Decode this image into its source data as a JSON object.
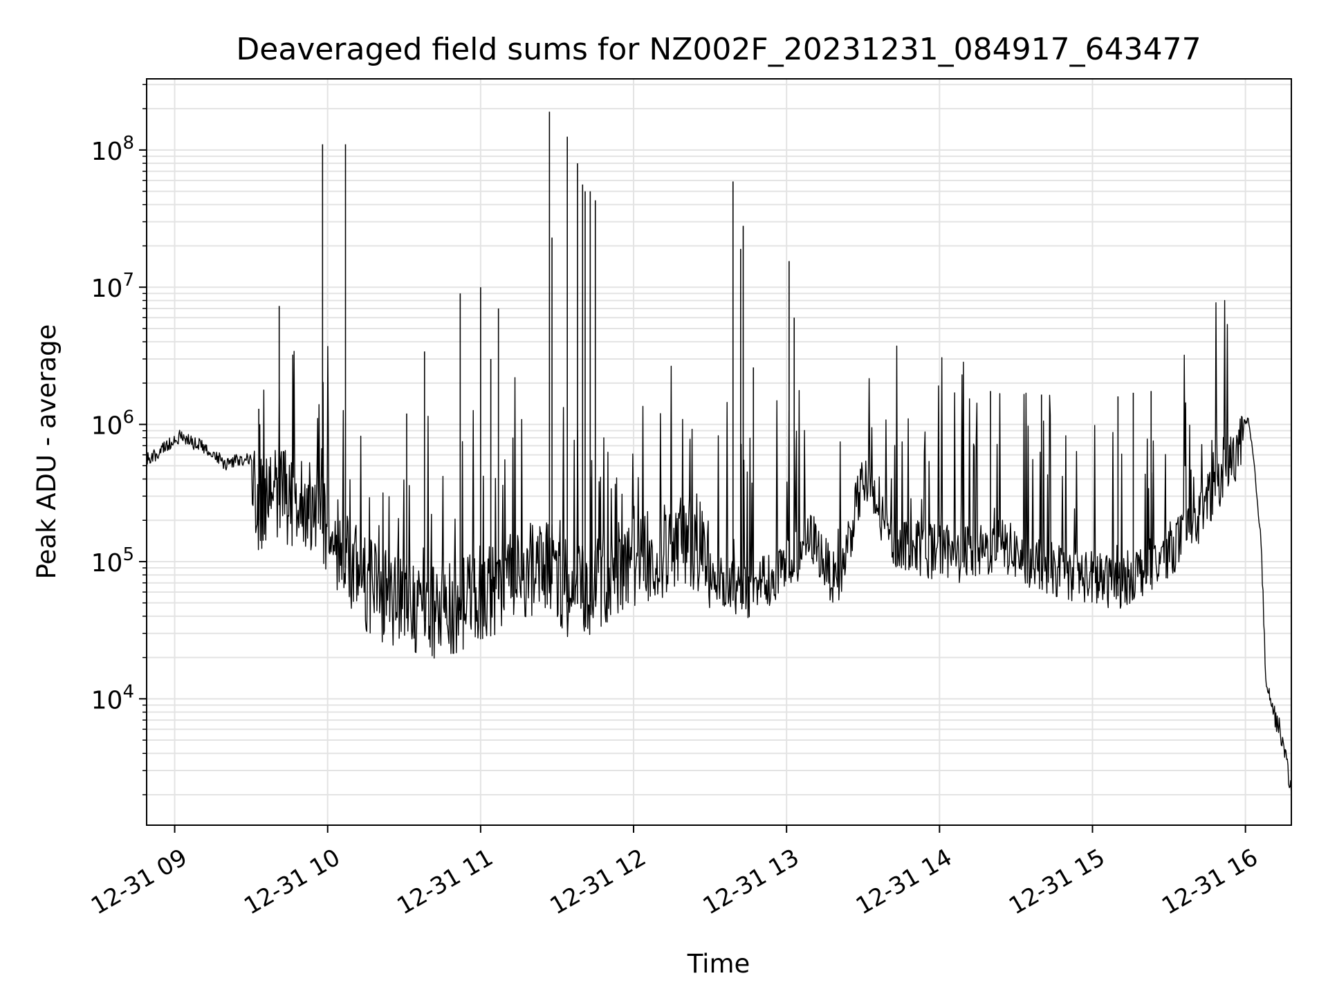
{
  "chart_data": {
    "type": "line",
    "title": "Deaveraged field sums for NZ002F_20231231_084917_643477",
    "xlabel": "Time",
    "ylabel": "Peak ADU - average",
    "yscale": "log",
    "grid": true,
    "legend": "none",
    "line_color": "#000000",
    "xlim": [
      "12-31 08:49",
      "12-31 16:18"
    ],
    "ylim": [
      1200,
      330000000
    ],
    "x_ticks": [
      {
        "t": "12-31 09:00",
        "label": "12-31 09"
      },
      {
        "t": "12-31 10:00",
        "label": "12-31 10"
      },
      {
        "t": "12-31 11:00",
        "label": "12-31 11"
      },
      {
        "t": "12-31 12:00",
        "label": "12-31 12"
      },
      {
        "t": "12-31 13:00",
        "label": "12-31 13"
      },
      {
        "t": "12-31 14:00",
        "label": "12-31 14"
      },
      {
        "t": "12-31 15:00",
        "label": "12-31 15"
      },
      {
        "t": "12-31 16:00",
        "label": "12-31 16"
      }
    ],
    "y_ticks": [
      {
        "value": 10000,
        "base": "10",
        "exp": "4"
      },
      {
        "value": 100000,
        "base": "10",
        "exp": "5"
      },
      {
        "value": 1000000,
        "base": "10",
        "exp": "6"
      },
      {
        "value": 10000000,
        "base": "10",
        "exp": "7"
      },
      {
        "value": 100000000,
        "base": "10",
        "exp": "8"
      }
    ],
    "series": [
      {
        "baseline": [
          [
            "12-31 08:49",
            550000
          ],
          [
            "12-31 08:55",
            650000
          ],
          [
            "12-31 09:02",
            820000
          ],
          [
            "12-31 09:10",
            700000
          ],
          [
            "12-31 09:20",
            520000
          ],
          [
            "12-31 09:30",
            580000
          ],
          [
            "12-31 09:33",
            250000
          ],
          [
            "12-31 09:40",
            330000
          ],
          [
            "12-31 09:50",
            260000
          ],
          [
            "12-31 09:58",
            200000
          ],
          [
            "12-31 10:06",
            120000
          ],
          [
            "12-31 10:15",
            70000
          ],
          [
            "12-31 10:25",
            50000
          ],
          [
            "12-31 10:35",
            47000
          ],
          [
            "12-31 10:45",
            43000
          ],
          [
            "12-31 10:52",
            47000
          ],
          [
            "12-31 11:00",
            60000
          ],
          [
            "12-31 11:10",
            70000
          ],
          [
            "12-31 11:25",
            100000
          ],
          [
            "12-31 11:35",
            60000
          ],
          [
            "12-31 11:45",
            65000
          ],
          [
            "12-31 11:55",
            95000
          ],
          [
            "12-31 12:10",
            120000
          ],
          [
            "12-31 12:25",
            140000
          ],
          [
            "12-31 12:33",
            70000
          ],
          [
            "12-31 12:45",
            60000
          ],
          [
            "12-31 13:00",
            90000
          ],
          [
            "12-31 13:10",
            150000
          ],
          [
            "12-31 13:20",
            65000
          ],
          [
            "12-31 13:30",
            400000
          ],
          [
            "12-31 13:40",
            150000
          ],
          [
            "12-31 13:55",
            120000
          ],
          [
            "12-31 14:10",
            110000
          ],
          [
            "12-31 14:25",
            130000
          ],
          [
            "12-31 14:40",
            90000
          ],
          [
            "12-31 14:55",
            80000
          ],
          [
            "12-31 15:10",
            70000
          ],
          [
            "12-31 15:25",
            100000
          ],
          [
            "12-31 15:40",
            180000
          ],
          [
            "12-31 15:50",
            400000
          ],
          [
            "12-31 15:58",
            700000
          ],
          [
            "12-31 16:01",
            1100000
          ],
          [
            "12-31 16:03",
            600000
          ],
          [
            "12-31 16:06",
            150000
          ],
          [
            "12-31 16:08",
            15000
          ],
          [
            "12-31 16:11",
            8000
          ],
          [
            "12-31 16:14",
            5500
          ],
          [
            "12-31 16:18",
            2200
          ]
        ],
        "spikes": [
          [
            "12-31 09:33",
            1300000
          ],
          [
            "12-31 09:41",
            7300000
          ],
          [
            "12-31 09:58",
            110000000
          ],
          [
            "12-31 10:07",
            110000000
          ],
          [
            "12-31 10:31",
            1200000
          ],
          [
            "12-31 10:38",
            3400000
          ],
          [
            "12-31 10:52",
            9000000
          ],
          [
            "12-31 11:00",
            10000000
          ],
          [
            "12-31 11:04",
            3000000
          ],
          [
            "12-31 11:07",
            7000000
          ],
          [
            "12-31 11:27",
            190000000
          ],
          [
            "12-31 11:28",
            23000000
          ],
          [
            "12-31 11:34",
            125000000
          ],
          [
            "12-31 11:38",
            80000000
          ],
          [
            "12-31 11:40",
            56000000
          ],
          [
            "12-31 11:41",
            50000000
          ],
          [
            "12-31 11:43",
            50000000
          ],
          [
            "12-31 11:45",
            43000000
          ],
          [
            "12-31 12:39",
            59000000
          ],
          [
            "12-31 12:42",
            19000000
          ],
          [
            "12-31 12:43",
            28000000
          ],
          [
            "12-31 12:47",
            2600000
          ],
          [
            "12-31 13:01",
            15500000
          ],
          [
            "12-31 13:03",
            6000000
          ],
          [
            "12-31 14:20",
            1750000
          ],
          [
            "12-31 14:40",
            1650000
          ],
          [
            "12-31 15:10",
            1600000
          ],
          [
            "12-31 15:16",
            1700000
          ],
          [
            "12-31 15:23",
            1750000
          ]
        ]
      }
    ]
  }
}
